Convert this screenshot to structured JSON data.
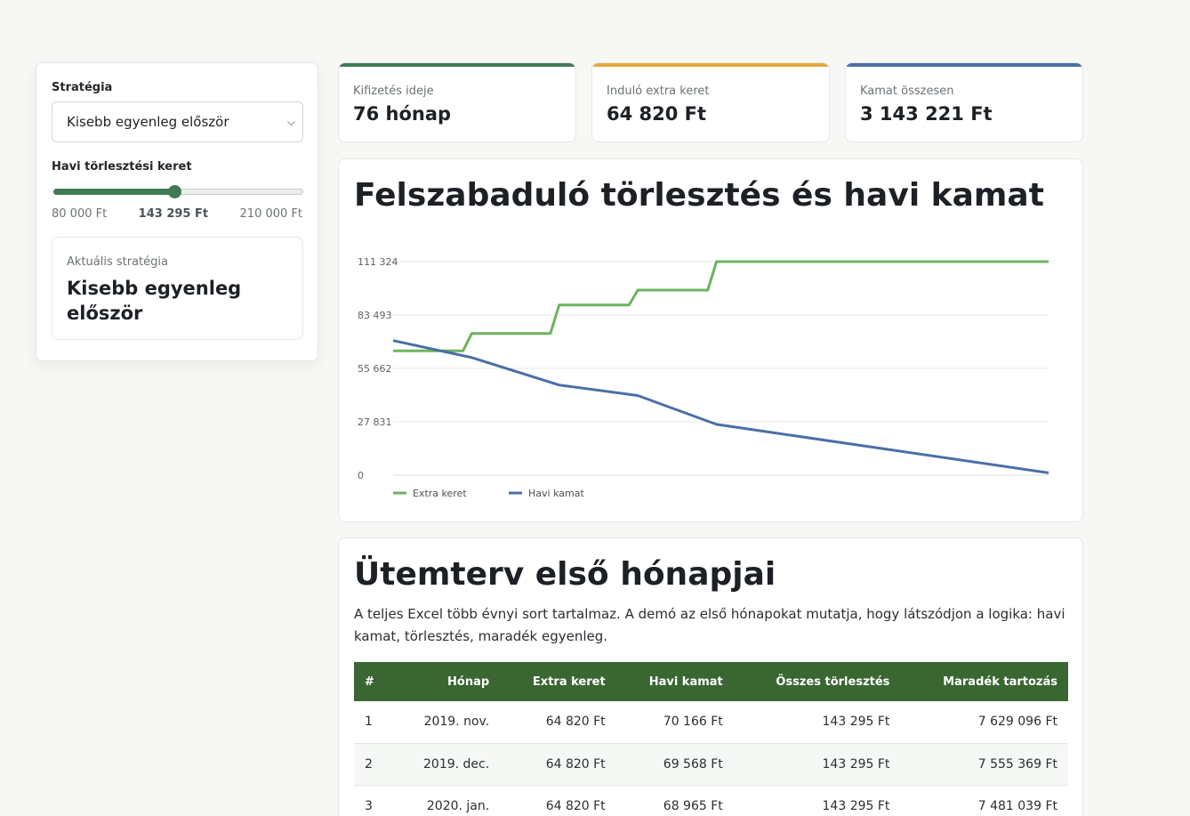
{
  "sidebar": {
    "strategy_label": "Stratégia",
    "strategy_value": "Kisebb egyenleg először",
    "budget_label": "Havi törlesztési keret",
    "slider_min": "80 000 Ft",
    "slider_current": "143 295 Ft",
    "slider_max": "210 000 Ft",
    "slider_fraction": 0.4869,
    "current_label": "Aktuális stratégia",
    "current_value": "Kisebb egyenleg először"
  },
  "kpis": [
    {
      "label": "Kifizetés ideje",
      "value": "76 hónap",
      "accent": "#3f7a55"
    },
    {
      "label": "Induló extra keret",
      "value": "64 820 Ft",
      "accent": "#e2a93b"
    },
    {
      "label": "Kamat összesen",
      "value": "3 143 221 Ft",
      "accent": "#4a6fa5"
    }
  ],
  "chart_panel": {
    "title": "Felszabaduló törlesztés és havi kamat"
  },
  "chart_data": {
    "type": "line",
    "title": "Felszabaduló törlesztés és havi kamat",
    "y_ticks": [
      "0",
      "27 831",
      "55 662",
      "83 493",
      "111 324"
    ],
    "ylim": [
      0,
      111324
    ],
    "x": [
      1,
      9,
      10,
      19,
      20,
      28,
      29,
      37,
      38,
      76
    ],
    "grid": true,
    "legend": "bottom-left",
    "series": [
      {
        "name": "Extra keret",
        "color": "#6db35f",
        "points": [
          [
            1,
            64820
          ],
          [
            9,
            64820
          ],
          [
            10,
            73900
          ],
          [
            19,
            73900
          ],
          [
            20,
            88700
          ],
          [
            28,
            88700
          ],
          [
            29,
            96500
          ],
          [
            37,
            96500
          ],
          [
            38,
            111324
          ],
          [
            76,
            111324
          ]
        ]
      },
      {
        "name": "Havi kamat",
        "color": "#4a6fa5",
        "points": [
          [
            1,
            70166
          ],
          [
            10,
            61300
          ],
          [
            20,
            47000
          ],
          [
            29,
            41500
          ],
          [
            38,
            26500
          ],
          [
            76,
            1200
          ]
        ]
      }
    ]
  },
  "table_panel": {
    "title": "Ütemterv első hónapjai",
    "description": "A teljes Excel több évnyi sort tartalmaz. A demó az első hónapokat mutatja, hogy látszódjon a logika: havi kamat, törlesztés, maradék egyenleg.",
    "columns": [
      "#",
      "Hónap",
      "Extra keret",
      "Havi kamat",
      "Összes törlesztés",
      "Maradék tartozás"
    ],
    "rows": [
      [
        "1",
        "2019. nov.",
        "64 820 Ft",
        "70 166 Ft",
        "143 295 Ft",
        "7 629 096 Ft"
      ],
      [
        "2",
        "2019. dec.",
        "64 820 Ft",
        "69 568 Ft",
        "143 295 Ft",
        "7 555 369 Ft"
      ],
      [
        "3",
        "2020. jan.",
        "64 820 Ft",
        "68 965 Ft",
        "143 295 Ft",
        "7 481 039 Ft"
      ]
    ]
  }
}
